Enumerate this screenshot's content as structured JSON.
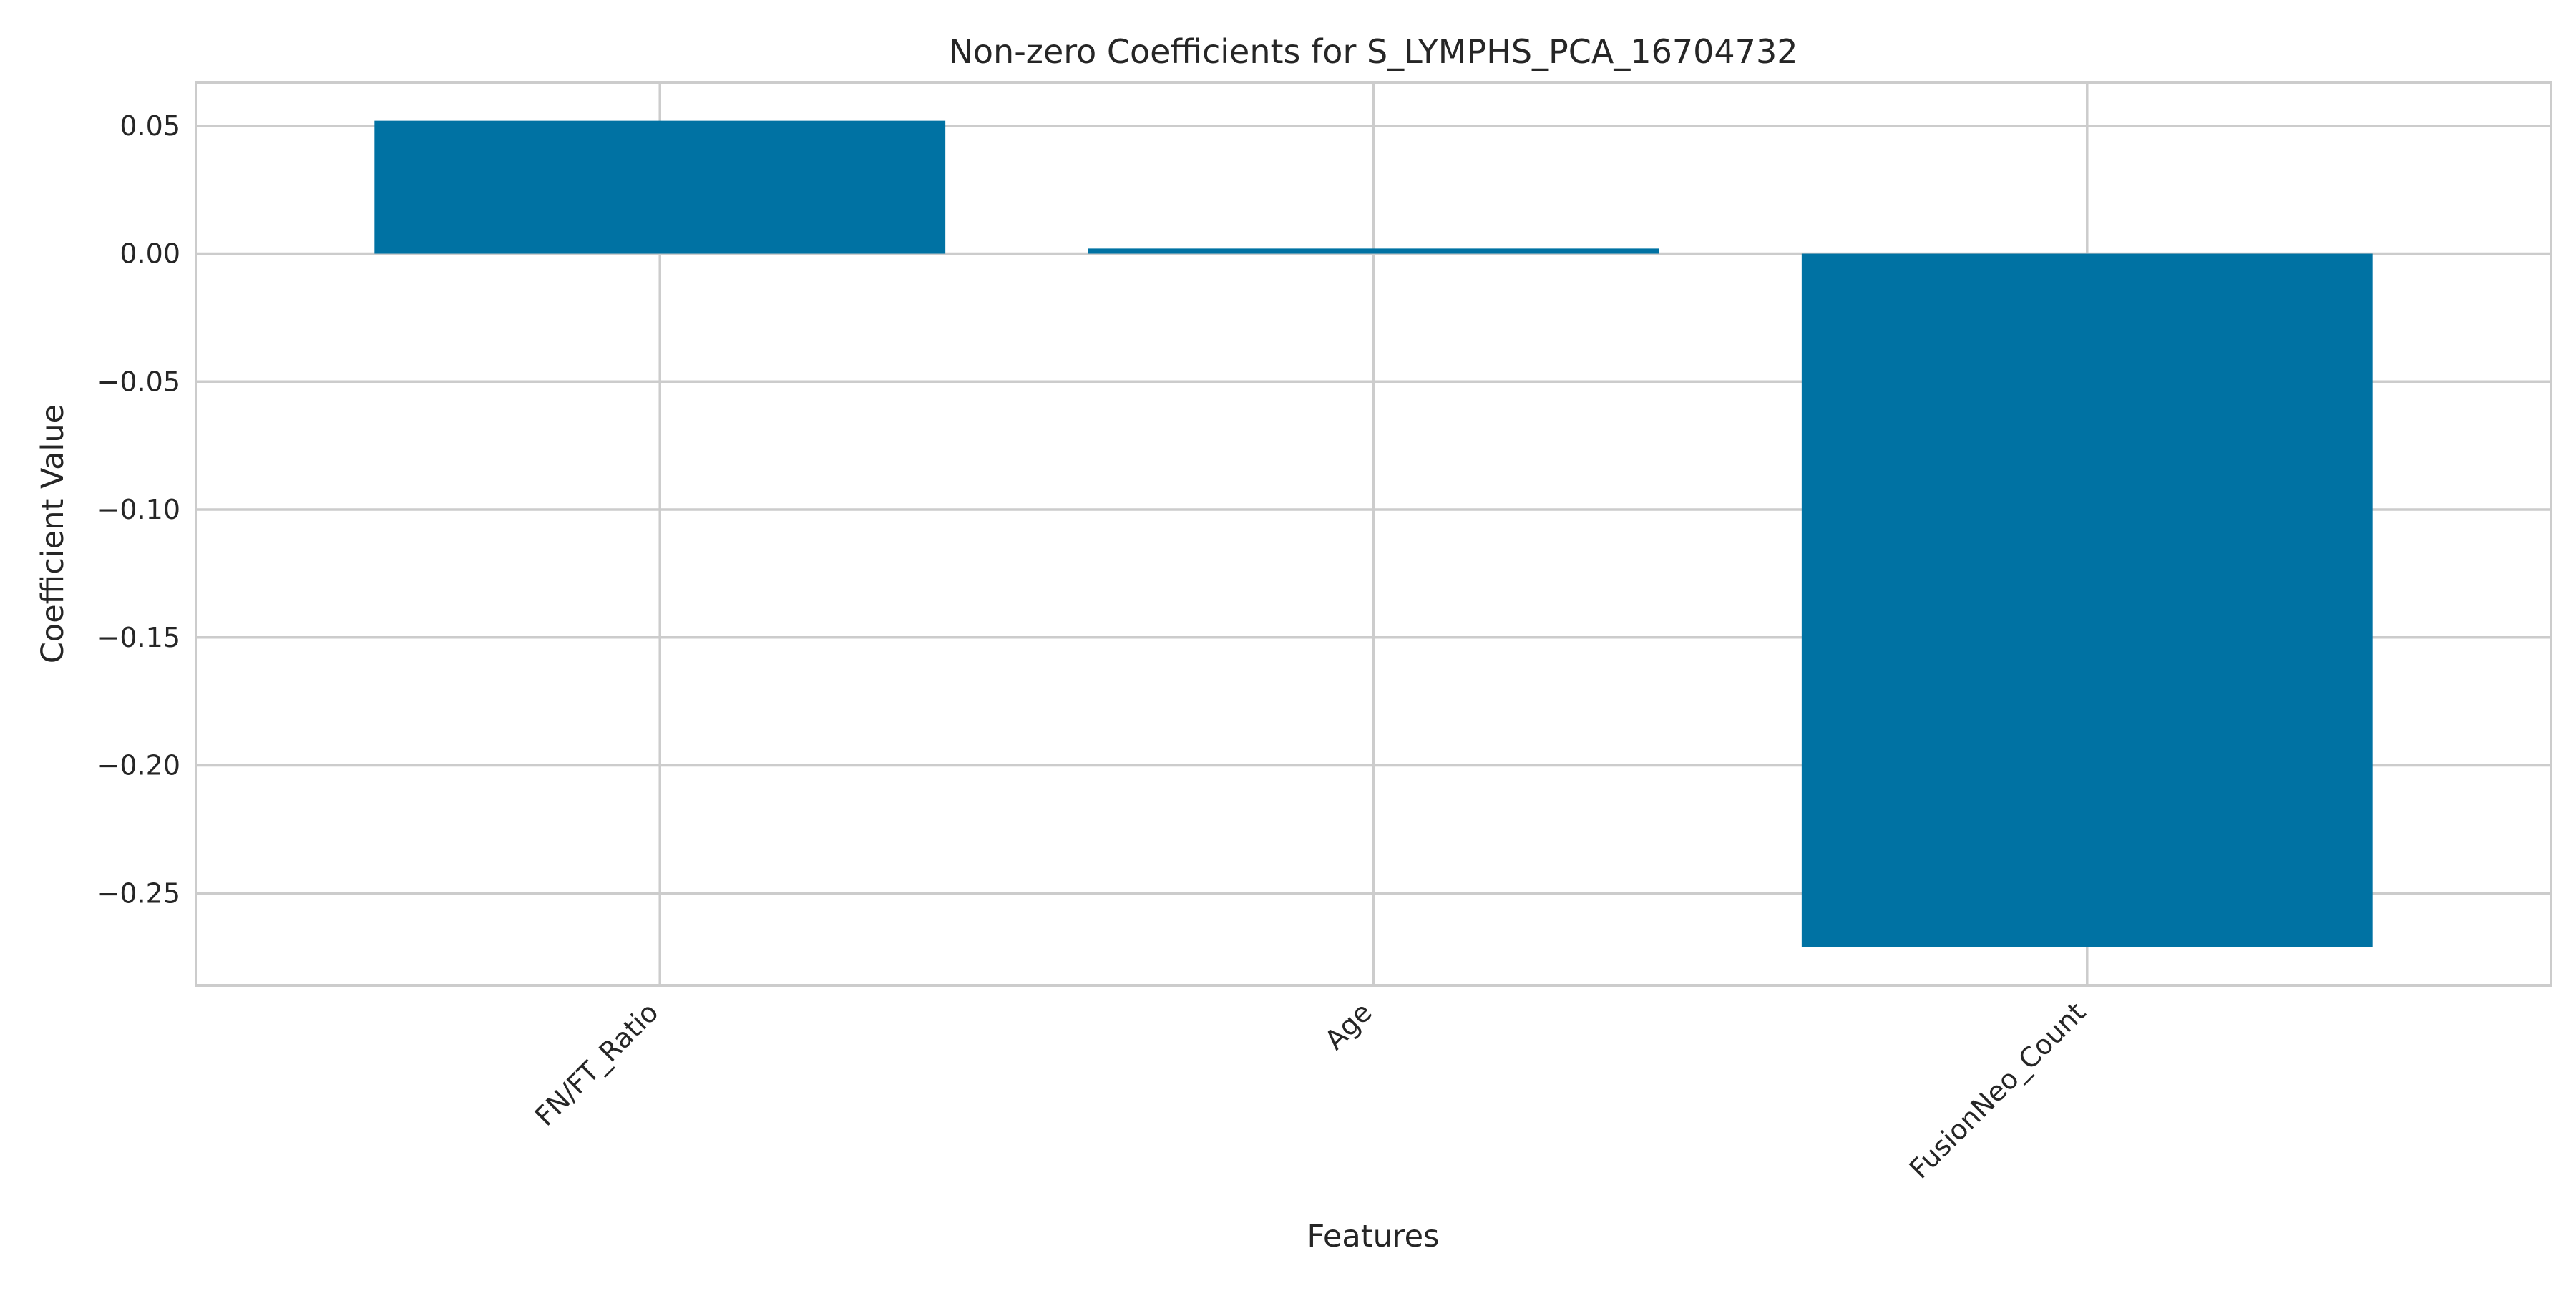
{
  "chart_data": {
    "type": "bar",
    "title": "Non-zero Coefficients for S_LYMPHS_PCA_16704732",
    "xlabel": "Features",
    "ylabel": "Coefficient Value",
    "categories": [
      "FN/FT_Ratio",
      "Age",
      "FusionNeo_Count"
    ],
    "values": [
      0.052,
      0.002,
      -0.271
    ],
    "ylim": [
      -0.286,
      0.067
    ],
    "yticks": [
      0.05,
      0.0,
      -0.05,
      -0.1,
      -0.15,
      -0.2,
      -0.25
    ],
    "ytick_labels": [
      "0.05",
      "0.00",
      "−0.05",
      "−0.10",
      "−0.15",
      "−0.20",
      "−0.25"
    ],
    "grid": true,
    "legend": "none",
    "colors": {
      "bar": "#0072a3",
      "grid": "#cccccc",
      "spine": "#cccccc",
      "text": "#262626",
      "background": "#ffffff"
    }
  }
}
